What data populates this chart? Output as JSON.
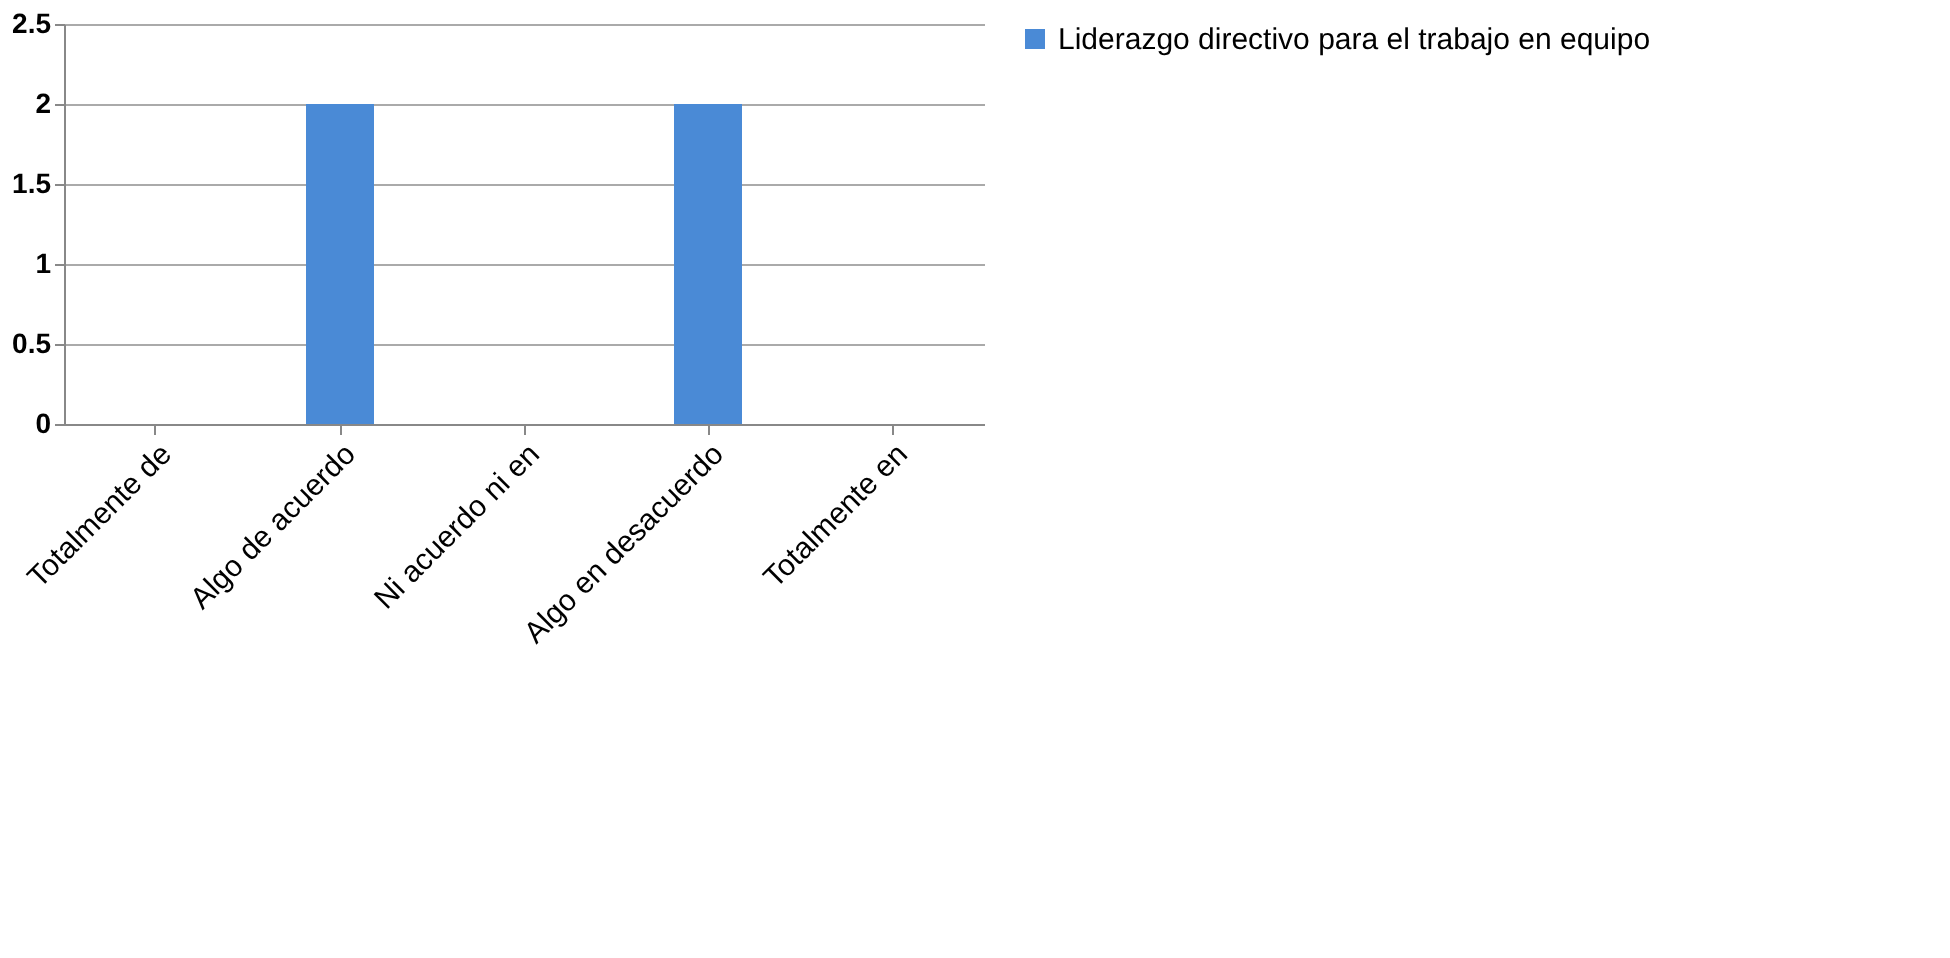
{
  "chart_data": {
    "type": "bar",
    "categories": [
      "Totalmente de",
      "Algo de acuerdo",
      "Ni acuerdo ni en",
      "Algo en desacuerdo",
      "Totalmente en"
    ],
    "series": [
      {
        "name": "Liderazgo directivo para el trabajo en equipo",
        "color": "#4a8ad6",
        "values": [
          0,
          2,
          0,
          2,
          0
        ]
      }
    ],
    "ylim": [
      0,
      2.5
    ],
    "yticks": [
      0,
      0.5,
      1,
      1.5,
      2,
      2.5
    ],
    "grid": "y",
    "legend": "right"
  }
}
